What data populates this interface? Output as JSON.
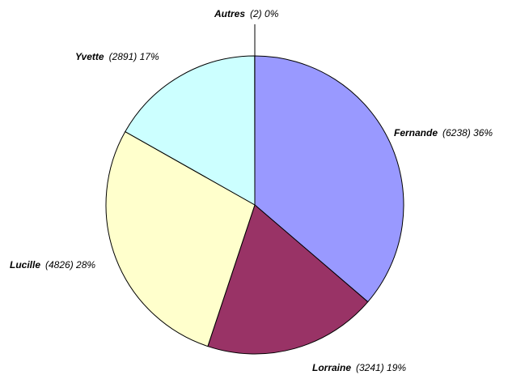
{
  "chart_data": {
    "type": "pie",
    "categories": [
      "Fernande",
      "Lorraine",
      "Lucille",
      "Yvette",
      "Autres"
    ],
    "values": [
      6238,
      3241,
      4826,
      2891,
      2
    ],
    "value_labels": [
      "(6238) 36%",
      "(3241) 19%",
      "(4826) 28%",
      "(2891) 17%",
      "(2) 0%"
    ],
    "colors": [
      "#9999ff",
      "#993366",
      "#ffffcc",
      "#ccffff",
      "#660066"
    ]
  }
}
